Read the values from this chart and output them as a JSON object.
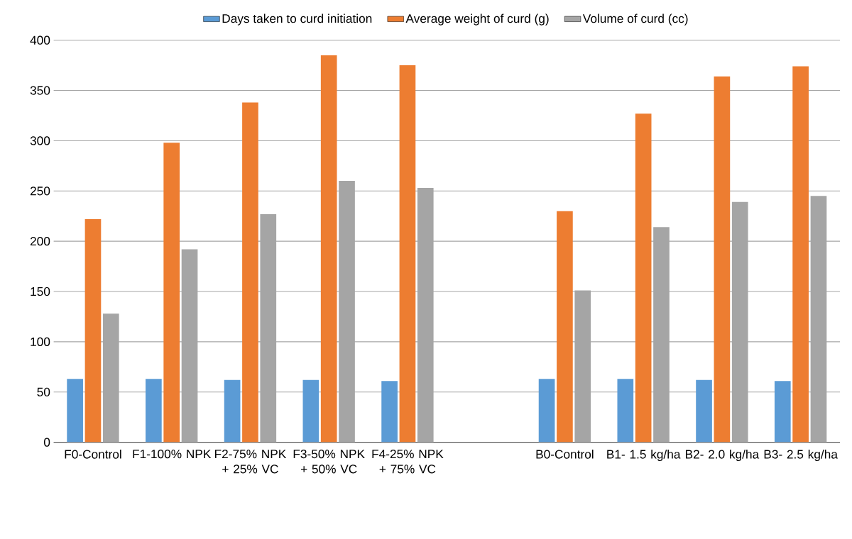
{
  "chart_data": {
    "type": "bar",
    "categories": [
      "F0-Control",
      "F1-100% NPK",
      "F2-75% NPK + 25% VC",
      "F3-50% NPK + 50% VC",
      "F4-25% NPK + 75% VC",
      null,
      "B0-Control",
      "B1- 1.5 kg/ha",
      "B2- 2.0 kg/ha",
      "B3- 2.5 kg/ha"
    ],
    "series": [
      {
        "name": "Days taken to curd initiation",
        "color": "#5b9bd5",
        "values": [
          63,
          63,
          62,
          62,
          61,
          null,
          63,
          63,
          62,
          61
        ]
      },
      {
        "name": "Average weight of curd (g)",
        "color": "#ed7d31",
        "values": [
          222,
          298,
          338,
          385,
          375,
          null,
          230,
          327,
          364,
          374
        ]
      },
      {
        "name": "Volume of curd (cc)",
        "color": "#a5a5a5",
        "values": [
          128,
          192,
          227,
          260,
          253,
          null,
          151,
          214,
          239,
          245
        ]
      }
    ],
    "ylim": [
      0,
      400
    ],
    "yticks": [
      0,
      50,
      100,
      150,
      200,
      250,
      300,
      350,
      400
    ],
    "grid": "y",
    "legend": "top"
  }
}
